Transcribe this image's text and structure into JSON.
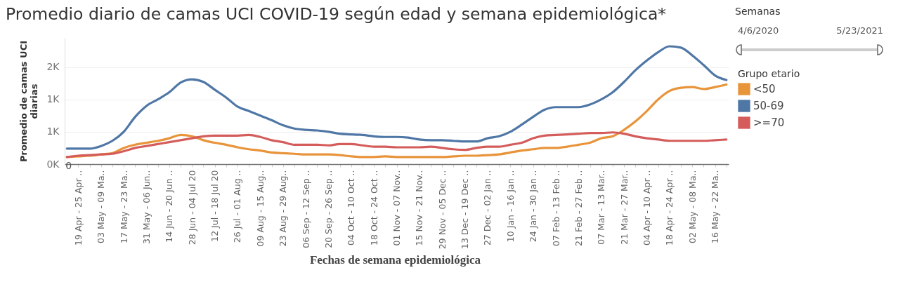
{
  "chart_data": {
    "type": "line",
    "title": "Promedio diario de camas UCI COVID-19 según edad y semana epidemiológica*",
    "xlabel": "Fechas de semana epidemiológica",
    "ylabel": "Promedio de camas UCI diarias",
    "legend_title": "Grupo etario",
    "categories": [
      null,
      "19 Apr - 25 Apr ..",
      null,
      "03 May - 09 Ma..",
      null,
      "17 May - 23 Ma..",
      null,
      "31 May - 06 Jun..",
      null,
      "14 Jun - 20 Jun ..",
      null,
      "28 Jun - 04 Jul 20",
      null,
      "12 Jul - 18 Jul 20",
      null,
      "26 Jul - 01 Aug ..",
      null,
      "09 Aug - 15 Aug..",
      null,
      "23 Aug - 29 Aug..",
      null,
      "06 Sep - 12 Sep ..",
      null,
      "20 Sep - 26 Sep ..",
      null,
      "04 Oct - 10 Oct ..",
      null,
      "18 Oct - 24 Oct ..",
      null,
      "01 Nov - 07 Nov..",
      null,
      "15 Nov - 21 Nov..",
      null,
      "29 Nov - 05 Dec ..",
      null,
      "13 Dec - 19 Dec ..",
      null,
      "27 Dec - 02 Jan ..",
      null,
      "10 Jan - 16 Jan ..",
      null,
      "24 Jan - 30 Jan ..",
      null,
      "07 Feb - 13 Feb ..",
      null,
      "21 Feb - 27 Feb ..",
      null,
      "07 Mar - 13 Mar..",
      null,
      "21 Mar - 27 Mar..",
      null,
      "04 Apr - 10 Apr ..",
      null,
      "18 Apr - 24 Apr ..",
      null,
      "02 May - 08 Ma..",
      null,
      "16 May - 22 Ma..",
      null
    ],
    "series": [
      {
        "name": "<50",
        "color": "#e8943a",
        "values": [
          110,
          120,
          130,
          150,
          170,
          250,
          300,
          330,
          360,
          400,
          450,
          430,
          370,
          330,
          300,
          260,
          230,
          210,
          180,
          170,
          160,
          150,
          150,
          150,
          140,
          120,
          110,
          110,
          120,
          110,
          110,
          110,
          110,
          110,
          120,
          130,
          130,
          140,
          150,
          180,
          210,
          230,
          250,
          250,
          270,
          300,
          330,
          400,
          430,
          530,
          660,
          820,
          1000,
          1130,
          1180,
          1190,
          1160,
          1190,
          1230
        ]
      },
      {
        "name": "50-69",
        "color": "#4f77a6",
        "values": [
          240,
          240,
          240,
          280,
          360,
          500,
          730,
          900,
          1000,
          1110,
          1260,
          1310,
          1270,
          1150,
          1030,
          890,
          820,
          750,
          680,
          600,
          550,
          530,
          520,
          500,
          470,
          460,
          450,
          430,
          420,
          420,
          410,
          380,
          370,
          370,
          360,
          350,
          350,
          400,
          430,
          500,
          610,
          730,
          840,
          880,
          880,
          880,
          920,
          1000,
          1110,
          1270,
          1450,
          1600,
          1730,
          1820,
          1800,
          1680,
          1530,
          1370,
          1300
        ]
      },
      {
        "name": ">=70",
        "color": "#d45d5b",
        "values": [
          110,
          130,
          140,
          150,
          160,
          200,
          250,
          280,
          310,
          340,
          370,
          400,
          430,
          440,
          440,
          440,
          450,
          420,
          370,
          340,
          300,
          300,
          300,
          290,
          310,
          310,
          290,
          270,
          270,
          260,
          260,
          260,
          270,
          250,
          230,
          220,
          250,
          270,
          270,
          300,
          330,
          400,
          440,
          450,
          460,
          470,
          480,
          480,
          490,
          470,
          430,
          400,
          380,
          360,
          360,
          360,
          360,
          370,
          380
        ]
      }
    ],
    "ylim": [
      0,
      1950
    ],
    "yticks": [
      {
        "value": 0,
        "label": "0K"
      },
      {
        "value": 500,
        "label": "1K"
      },
      {
        "value": 1000,
        "label": "1K"
      },
      {
        "value": 1500,
        "label": "2K"
      }
    ],
    "grid": "y",
    "legend": "right",
    "annotations": [
      "0",
      "Semanas",
      "4/6/2020",
      "5/23/2021"
    ]
  }
}
